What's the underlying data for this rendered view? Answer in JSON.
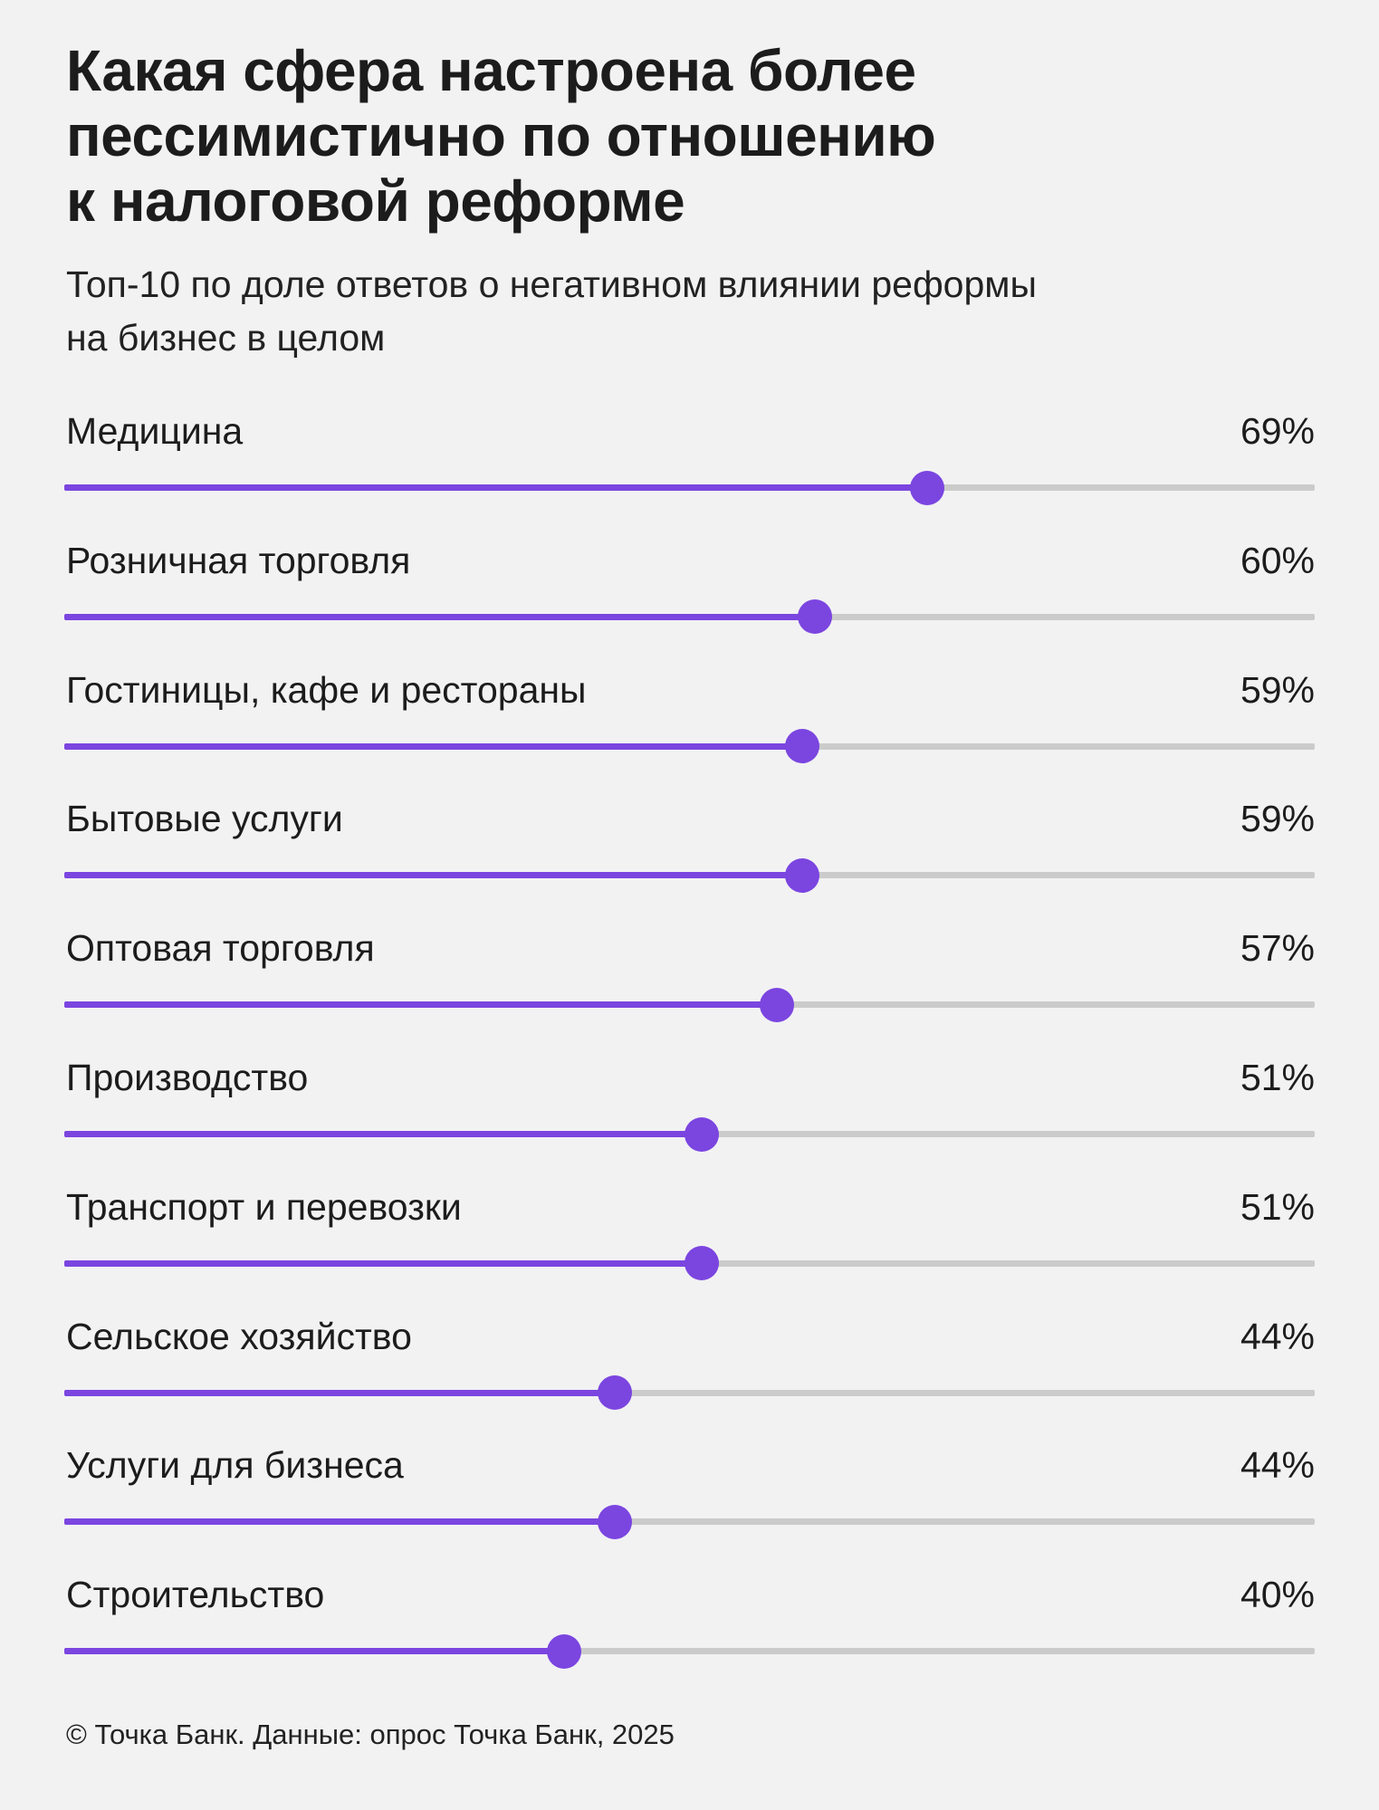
{
  "header": {
    "title": "Какая сфера настроена более пессимистично по отношению к налоговой реформе",
    "title_lines": [
      "Какая сфера настроена более",
      "пессимистично по отношению",
      "к налоговой реформе"
    ],
    "subtitle_lines": [
      "Топ-10 по доле ответов о негативном влиянии реформы",
      "на бизнес в целом"
    ]
  },
  "footer": {
    "source": "© Точка Банк. Данные: опрос Точка Банк, 2025"
  },
  "colors": {
    "accent": "#7b45e0",
    "track": "#cbcbcb",
    "background": "#f2f2f3",
    "text": "#1c1c1c"
  },
  "chart_data": {
    "type": "bar",
    "orientation": "horizontal",
    "style": "lollipop-slider",
    "title": "Какая сфера настроена более пессимистично по отношению к налоговой реформе",
    "subtitle": "Топ-10 по доле ответов о негативном влиянии реформы на бизнес в целом",
    "xlabel": "",
    "ylabel": "",
    "xlim": [
      0,
      100
    ],
    "unit": "%",
    "grid": false,
    "legend": null,
    "categories": [
      "Медицина",
      "Розничная торговля",
      "Гостиницы, кафе и рестораны",
      "Бытовые услуги",
      "Оптовая торговля",
      "Производство",
      "Транспорт и перевозки",
      "Сельское хозяйство",
      "Услуги для бизнеса",
      "Строительство"
    ],
    "values": [
      69,
      60,
      59,
      59,
      57,
      51,
      51,
      44,
      44,
      40
    ],
    "value_labels": [
      "69%",
      "60%",
      "59%",
      "59%",
      "57%",
      "51%",
      "51%",
      "44%",
      "44%",
      "40%"
    ],
    "source": "© Точка Банк. Данные: опрос Точка Банк, 2025"
  }
}
